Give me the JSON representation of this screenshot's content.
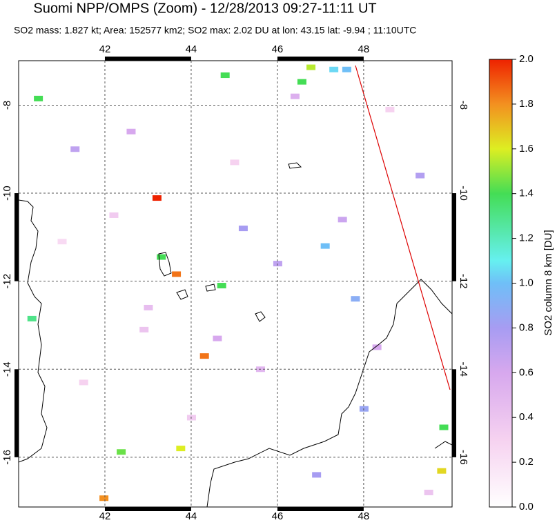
{
  "chart_data": {
    "type": "map",
    "title": "Suomi NPP/OMPS (Zoom) - 12/28/2013 09:27-11:11 UT",
    "subtitle": "SO2 mass: 1.827 kt; Area: 152577 km2; SO2 max: 2.02 DU at lon: 43.15 lat: -9.94 ; 11:10UTC",
    "xlim": [
      40,
      50.05
    ],
    "ylim": [
      -17.13,
      -6.99
    ],
    "xticks": [
      42,
      44,
      46,
      48
    ],
    "yticks": [
      -8,
      -10,
      -12,
      -14,
      -16
    ],
    "grid": true,
    "colorbar": {
      "label": "SO2 column 8 km [DU]",
      "lim": [
        0,
        2
      ],
      "ticks": [
        {
          "value": 0,
          "label": "0.0"
        },
        0.2,
        0.4,
        0.6,
        0.8,
        {
          "value": 1,
          "label": "1.0"
        },
        1.2,
        1.4,
        1.6,
        1.8,
        {
          "value": 2,
          "label": "2.0"
        }
      ]
    },
    "pixels": {
      "lon": [
        43.2,
        43.65,
        44.3,
        41.97,
        46.77,
        46.56,
        47.3,
        47.6,
        44.78,
        49.8,
        49.85,
        42.37,
        43.75,
        43.3,
        44.7,
        47.1,
        40.45,
        40.3,
        41.3,
        42.6,
        45.2,
        46.0,
        47.8,
        48.3,
        49.3,
        41.5,
        42.9,
        44.0,
        45.6,
        46.9,
        47.5,
        48.6,
        41.0,
        43.0,
        45.0,
        46.4,
        48.0,
        49.5,
        42.2,
        44.6
      ],
      "lat": [
        -10.11,
        -11.84,
        -13.7,
        -16.93,
        -7.14,
        -7.47,
        -7.19,
        -7.19,
        -7.32,
        -16.31,
        -15.32,
        -15.88,
        -15.8,
        -11.45,
        -12.1,
        -11.2,
        -7.85,
        -12.85,
        -9.0,
        -8.6,
        -10.8,
        -11.6,
        -12.4,
        -13.5,
        -9.6,
        -14.3,
        -13.1,
        -15.1,
        -14.0,
        -16.4,
        -10.6,
        -8.1,
        -11.1,
        -12.6,
        -9.3,
        -7.8,
        -14.9,
        -16.8,
        -10.5,
        -13.3
      ],
      "values": [
        2.0,
        1.85,
        1.85,
        1.8,
        1.55,
        1.4,
        1.05,
        1.0,
        1.4,
        1.65,
        1.4,
        1.45,
        1.6,
        1.4,
        1.4,
        1.0,
        1.4,
        1.3,
        0.7,
        0.6,
        0.8,
        0.7,
        0.9,
        0.6,
        0.75,
        0.3,
        0.4,
        0.35,
        0.5,
        0.8,
        0.65,
        0.3,
        0.25,
        0.45,
        0.3,
        0.55,
        0.85,
        0.4,
        0.35,
        0.6
      ]
    }
  }
}
